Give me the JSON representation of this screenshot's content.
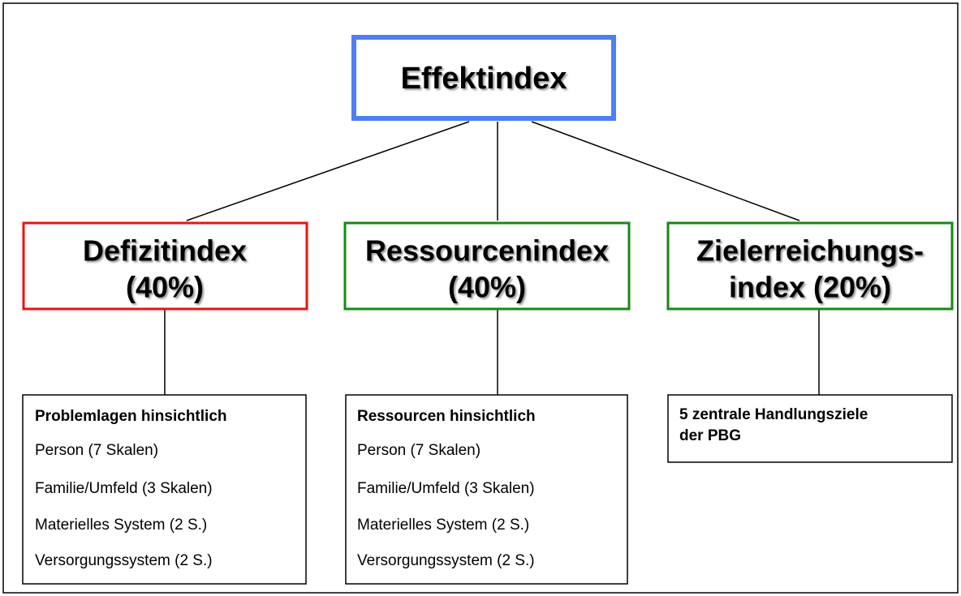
{
  "root": {
    "label": "Effektindex"
  },
  "indices": [
    {
      "lines": [
        "Defizitindex",
        "(40%)"
      ],
      "detail": {
        "heading": "Problemlagen hinsichtlich",
        "items": [
          "Person (7 Skalen)",
          "Familie/Umfeld (3 Skalen)",
          "Materielles System (2 S.)",
          "Versorgungssystem (2 S.)"
        ]
      }
    },
    {
      "lines": [
        "Ressourcenindex",
        "(40%)"
      ],
      "detail": {
        "heading": "Ressourcen hinsichtlich",
        "items": [
          "Person (7 Skalen)",
          "Familie/Umfeld (3 Skalen)",
          "Materielles System (2 S.)",
          "Versorgungssystem (2 S.)"
        ]
      }
    },
    {
      "lines": [
        "Zielerreichungs-",
        "index (20%)"
      ],
      "detail": {
        "heading_lines": [
          "5 zentrale Handlungsziele",
          "der PBG"
        ]
      }
    }
  ]
}
